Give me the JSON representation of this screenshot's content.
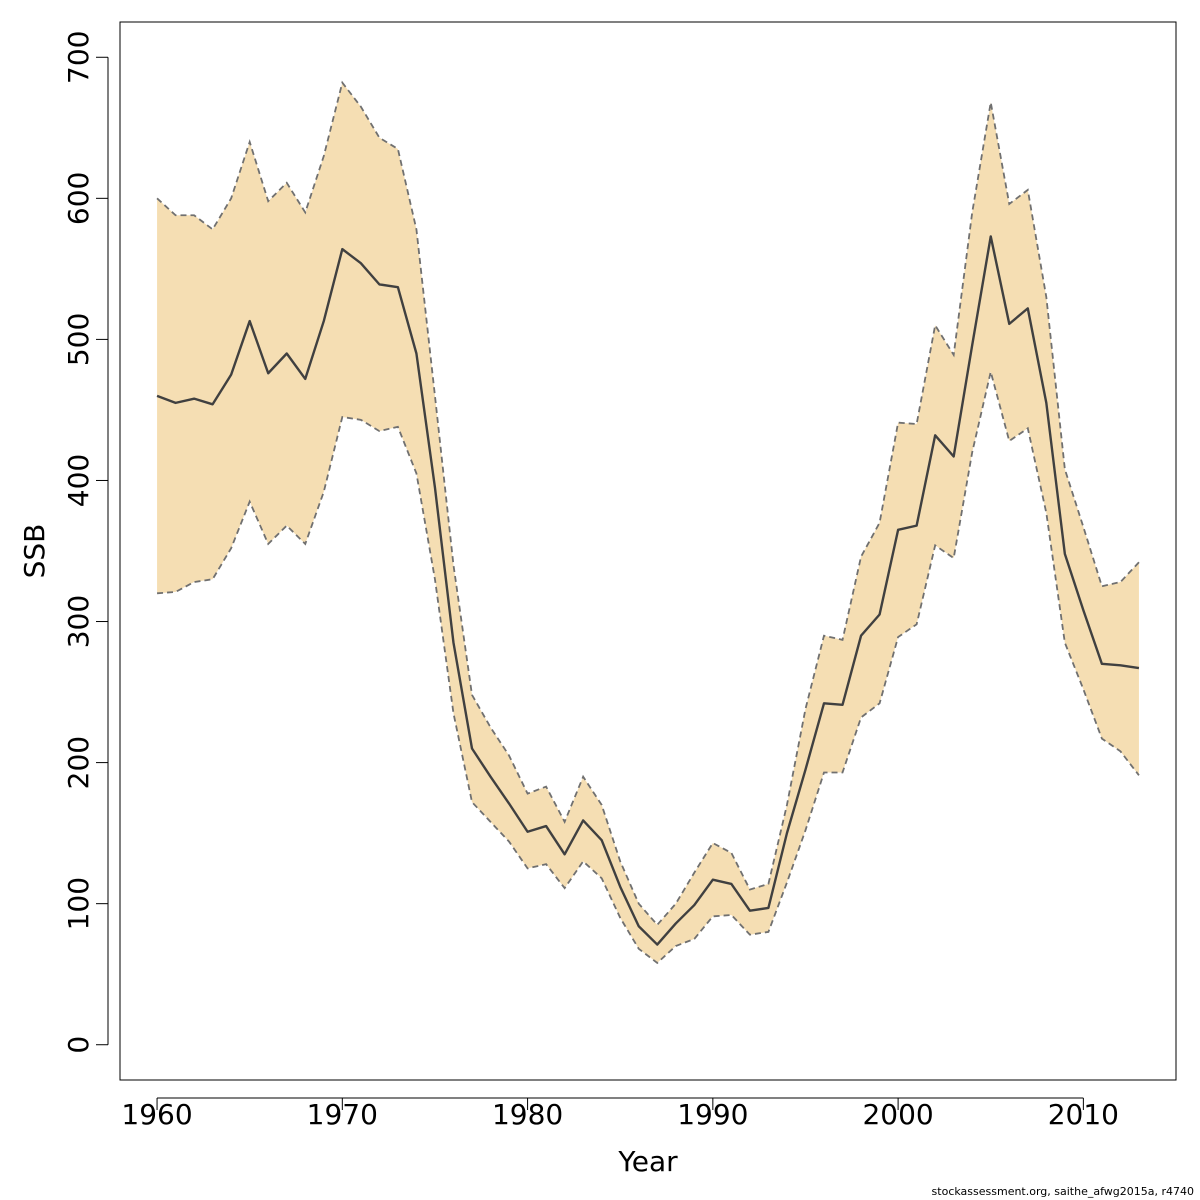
{
  "chart_data": {
    "type": "line",
    "title": "",
    "xlabel": "Year",
    "ylabel": "SSB",
    "xlim": [
      1958,
      2015
    ],
    "ylim": [
      -25,
      725
    ],
    "x_ticks": [
      1960,
      1970,
      1980,
      1990,
      2000,
      2010
    ],
    "y_ticks": [
      0,
      100,
      200,
      300,
      400,
      500,
      600,
      700
    ],
    "x_tick_labels": [
      "1960",
      "1970",
      "1980",
      "1990",
      "2000",
      "2010"
    ],
    "y_tick_labels": [
      "0",
      "100",
      "200",
      "300",
      "400",
      "500",
      "600",
      "700"
    ],
    "grid": false,
    "band_color": "#f5deb3",
    "line_color": "#404040",
    "bound_color": "#707070",
    "x": [
      1960,
      1961,
      1962,
      1963,
      1964,
      1965,
      1966,
      1967,
      1968,
      1969,
      1970,
      1971,
      1972,
      1973,
      1974,
      1975,
      1976,
      1977,
      1978,
      1979,
      1980,
      1981,
      1982,
      1983,
      1984,
      1985,
      1986,
      1987,
      1988,
      1989,
      1990,
      1991,
      1992,
      1993,
      1994,
      1995,
      1996,
      1997,
      1998,
      1999,
      2000,
      2001,
      2002,
      2003,
      2004,
      2005,
      2006,
      2007,
      2008,
      2009,
      2010,
      2011,
      2012,
      2013
    ],
    "series": [
      {
        "name": "SSB",
        "values": [
          460,
          455,
          458,
          454,
          475,
          513,
          476,
          490,
          472,
          513,
          564,
          554,
          539,
          537,
          490,
          395,
          285,
          210,
          190,
          171,
          151,
          155,
          135,
          159,
          145,
          112,
          84,
          71,
          86,
          99,
          117,
          114,
          95,
          97,
          150,
          195,
          242,
          241,
          290,
          305,
          365,
          368,
          432,
          417,
          496,
          573,
          511,
          522,
          455,
          348,
          308,
          270,
          269,
          267
        ]
      },
      {
        "name": "Upper",
        "values": [
          600,
          588,
          588,
          578,
          600,
          640,
          598,
          611,
          590,
          630,
          682,
          665,
          643,
          635,
          578,
          460,
          340,
          248,
          225,
          205,
          178,
          183,
          158,
          190,
          170,
          130,
          100,
          85,
          100,
          122,
          143,
          136,
          110,
          114,
          170,
          238,
          290,
          287,
          346,
          370,
          441,
          440,
          510,
          489,
          590,
          668,
          596,
          606,
          530,
          408,
          367,
          325,
          328,
          342
        ]
      },
      {
        "name": "Lower",
        "values": [
          320,
          321,
          328,
          330,
          352,
          385,
          355,
          368,
          355,
          392,
          445,
          443,
          435,
          438,
          405,
          330,
          235,
          172,
          158,
          144,
          125,
          128,
          111,
          130,
          118,
          90,
          68,
          58,
          70,
          75,
          91,
          92,
          78,
          80,
          115,
          152,
          193,
          193,
          232,
          242,
          289,
          298,
          354,
          345,
          420,
          477,
          428,
          437,
          377,
          285,
          252,
          217,
          208,
          191
        ]
      }
    ]
  },
  "footnote": "stockassessment.org, saithe_afwg2015a, r4740"
}
